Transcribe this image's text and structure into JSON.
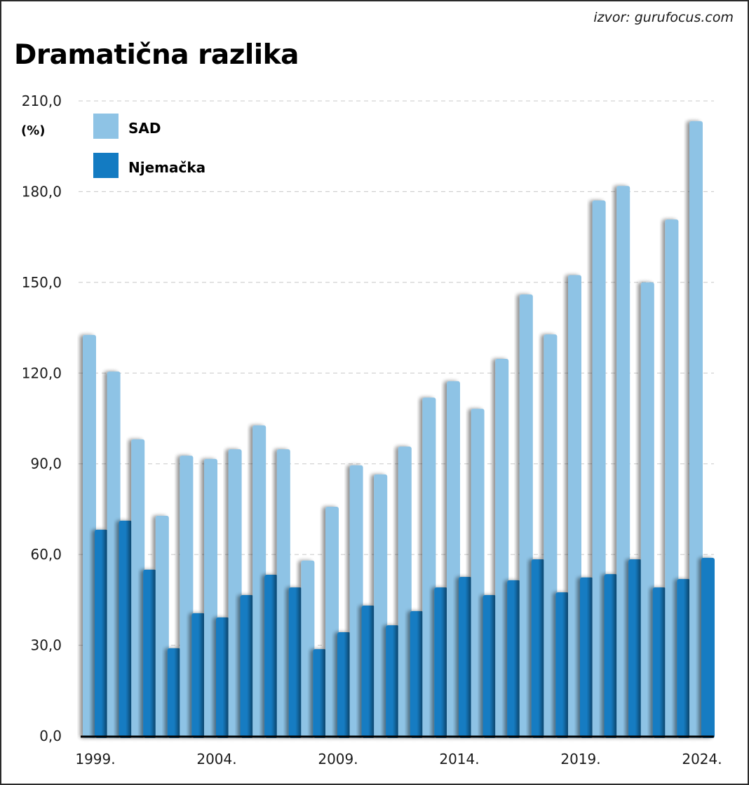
{
  "source": "izvor: gurufocus.com",
  "title": "Dramatična razlika",
  "colors": {
    "sad": "#8ec3e5",
    "njemacka": "#137bc2",
    "grid": "#c8c8c8",
    "axis": "#000000"
  },
  "chart_data": {
    "type": "bar",
    "title": "Dramatična razlika",
    "xlabel": "",
    "ylabel": "(%)",
    "ylim": [
      0,
      210
    ],
    "yticks": [
      0,
      30,
      60,
      90,
      120,
      150,
      180,
      210
    ],
    "ytick_labels": [
      "0,0",
      "30,0",
      "60,0",
      "90,0",
      "120,0",
      "150,0",
      "180,0",
      "210,0"
    ],
    "grid": true,
    "legend_position": "top-left",
    "categories": [
      1999,
      2000,
      2001,
      2002,
      2003,
      2004,
      2005,
      2006,
      2007,
      2008,
      2009,
      2010,
      2011,
      2012,
      2013,
      2014,
      2015,
      2016,
      2017,
      2018,
      2019,
      2020,
      2021,
      2022,
      2023,
      2024
    ],
    "xtick_labels": [
      {
        "index": 0,
        "label": "1999."
      },
      {
        "index": 5,
        "label": "2004."
      },
      {
        "index": 10,
        "label": "2009."
      },
      {
        "index": 15,
        "label": "2014."
      },
      {
        "index": 20,
        "label": "2019."
      },
      {
        "index": 25,
        "label": "2024."
      }
    ],
    "series": [
      {
        "name": "SAD",
        "color_key": "sad",
        "values": [
          132.6,
          120.5,
          98.1,
          72.8,
          92.7,
          91.6,
          94.8,
          102.7,
          94.8,
          58.0,
          75.8,
          89.5,
          86.5,
          95.7,
          111.9,
          117.3,
          108.2,
          124.7,
          146.0,
          132.8,
          152.4,
          177.1,
          181.9,
          150.0,
          170.8,
          203.3
        ]
      },
      {
        "name": "Njemačka",
        "color_key": "njemacka",
        "values": [
          68.2,
          71.2,
          55.0,
          29.0,
          40.6,
          39.2,
          46.6,
          53.3,
          49.1,
          28.7,
          34.3,
          43.1,
          36.6,
          41.3,
          49.1,
          52.6,
          46.6,
          51.5,
          58.4,
          47.5,
          52.4,
          53.5,
          58.4,
          49.1,
          51.9,
          58.9
        ]
      }
    ]
  }
}
